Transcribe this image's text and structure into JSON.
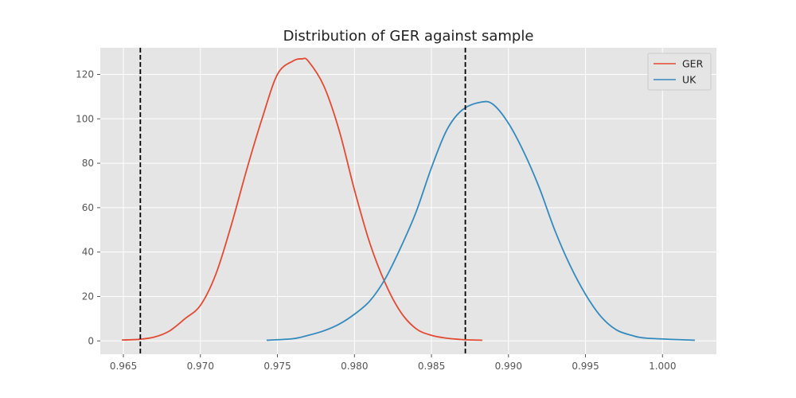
{
  "chart_data": {
    "type": "line",
    "title": "Distribution of GER against sample",
    "xlabel": "",
    "ylabel": "",
    "xlim": [
      0.9635,
      1.0035
    ],
    "ylim": [
      -6,
      132
    ],
    "xticks": [
      0.965,
      0.97,
      0.975,
      0.98,
      0.985,
      0.99,
      0.995,
      1.0
    ],
    "xtick_labels": [
      "0.965",
      "0.970",
      "0.975",
      "0.980",
      "0.985",
      "0.990",
      "0.995",
      "1.000"
    ],
    "yticks": [
      0,
      20,
      40,
      60,
      80,
      100,
      120
    ],
    "ytick_labels": [
      "0",
      "20",
      "40",
      "60",
      "80",
      "100",
      "120"
    ],
    "grid": true,
    "legend_position": "top-right",
    "series": [
      {
        "name": "GER",
        "color": "#E24A33",
        "x": [
          0.9649,
          0.966,
          0.967,
          0.968,
          0.969,
          0.97,
          0.971,
          0.972,
          0.973,
          0.974,
          0.975,
          0.976,
          0.9766,
          0.977,
          0.978,
          0.979,
          0.98,
          0.981,
          0.982,
          0.983,
          0.984,
          0.985,
          0.986,
          0.987,
          0.9883
        ],
        "y": [
          0.4,
          0.7,
          1.7,
          4.5,
          10.0,
          16.0,
          30.0,
          52.0,
          77.0,
          100.0,
          120.0,
          126.0,
          127.0,
          126.0,
          115.0,
          95.0,
          68.0,
          44.0,
          26.0,
          13.0,
          5.5,
          2.5,
          1.2,
          0.6,
          0.3
        ]
      },
      {
        "name": "UK",
        "color": "#348ABD",
        "x": [
          0.9743,
          0.976,
          0.977,
          0.978,
          0.979,
          0.98,
          0.981,
          0.982,
          0.983,
          0.984,
          0.985,
          0.986,
          0.987,
          0.9882,
          0.989,
          0.99,
          0.991,
          0.992,
          0.993,
          0.994,
          0.995,
          0.996,
          0.997,
          0.998,
          0.999,
          1.0021
        ],
        "y": [
          0.3,
          1.0,
          2.5,
          4.5,
          7.5,
          12.0,
          18.0,
          28.0,
          42.0,
          58.0,
          78.0,
          95.0,
          104.0,
          107.5,
          106.5,
          98.0,
          85.0,
          69.0,
          50.0,
          34.0,
          21.0,
          11.0,
          5.0,
          2.5,
          1.2,
          0.3
        ]
      }
    ],
    "vlines": [
      {
        "x": 0.9661,
        "color": "#000000",
        "style": "dashed"
      },
      {
        "x": 0.9872,
        "color": "#000000",
        "style": "dashed"
      }
    ]
  }
}
